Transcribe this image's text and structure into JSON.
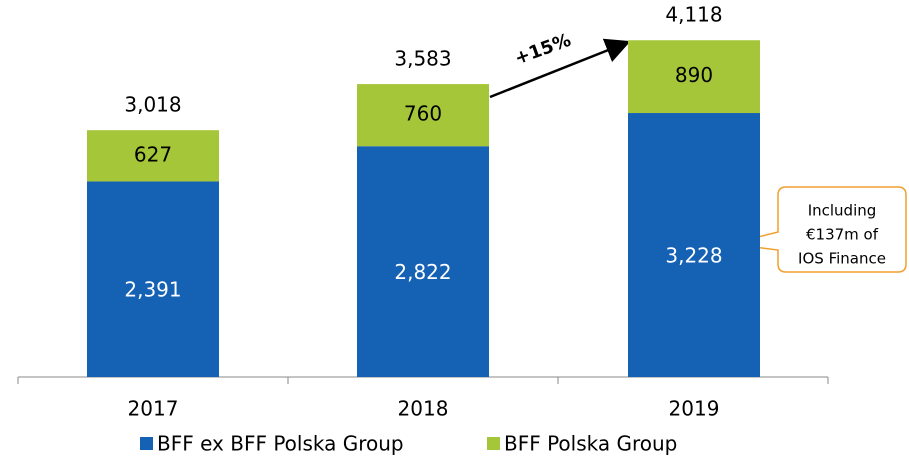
{
  "chart_data": {
    "type": "bar",
    "stacked": true,
    "categories": [
      "2017",
      "2018",
      "2019"
    ],
    "series": [
      {
        "name": "BFF ex BFF Polska Group",
        "color": "#1561b4",
        "values": [
          2391,
          2822,
          3228
        ],
        "value_labels": [
          "2,391",
          "2,822",
          "3,228"
        ]
      },
      {
        "name": "BFF Polska Group",
        "color": "#a5c639",
        "values": [
          627,
          760,
          890
        ],
        "value_labels": [
          "627",
          "760",
          "890"
        ]
      }
    ],
    "totals": [
      3018,
      3583,
      4118
    ],
    "total_labels": [
      "3,018",
      "3,583",
      "4,118"
    ],
    "ylim": [
      0,
      4500
    ],
    "annotations": {
      "growth": "+15%",
      "callout": [
        "Including",
        "€137m of",
        "IOS Finance"
      ]
    }
  }
}
